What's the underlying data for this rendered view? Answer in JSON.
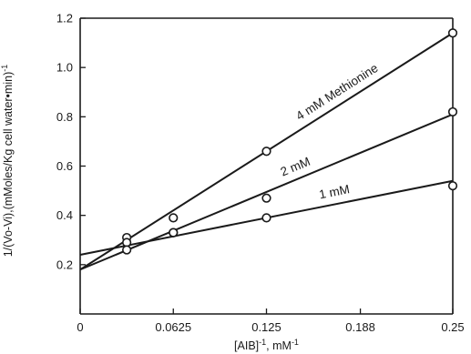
{
  "chart_data": {
    "type": "scatter",
    "title": "",
    "xlabel": "[AIB]",
    "xlabel_suffix": ", mM",
    "xlabel_sup": "-1",
    "ylabel": "1/(Vo-Vi),(mMoles/Kg cell water•min)",
    "ylabel_sup": "-1",
    "xlim": [
      0,
      0.25
    ],
    "ylim": [
      0,
      1.2
    ],
    "x_ticks": [
      0,
      0.0625,
      0.125,
      0.188,
      0.25
    ],
    "x_tick_labels": [
      "0",
      "0.0625",
      "0.125",
      "0.188",
      "0.25"
    ],
    "y_ticks": [
      0.2,
      0.4,
      0.6,
      0.8,
      1.0,
      1.2
    ],
    "y_tick_labels": [
      "0.2",
      "0.4",
      "0.6",
      "0.8",
      "1.0",
      "1.2"
    ],
    "grid": false,
    "marker": "open-circle",
    "series": [
      {
        "name": "4 mM Methionine",
        "x": [
          0.03125,
          0.0625,
          0.125,
          0.25
        ],
        "y": [
          0.31,
          0.39,
          0.66,
          1.14
        ],
        "fit": {
          "intercept": 0.18,
          "slope": 3.84
        }
      },
      {
        "name": "2 mM",
        "x": [
          0.03125,
          0.0625,
          0.125,
          0.25
        ],
        "y": [
          0.29,
          0.33,
          0.47,
          0.82
        ],
        "fit": {
          "intercept": 0.18,
          "slope": 2.52
        }
      },
      {
        "name": "1 mM",
        "x": [
          0.03125,
          0.0625,
          0.125,
          0.25
        ],
        "y": [
          0.26,
          0.33,
          0.39,
          0.52
        ],
        "fit": {
          "intercept": 0.24,
          "slope": 1.2
        }
      }
    ]
  }
}
